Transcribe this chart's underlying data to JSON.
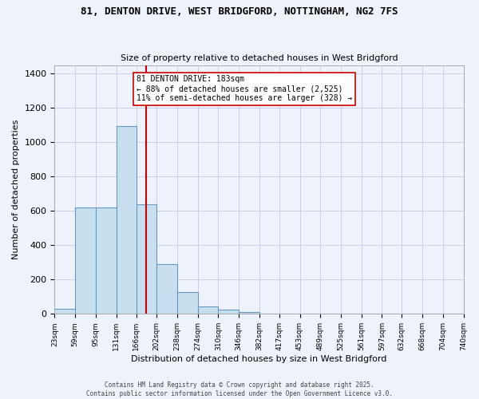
{
  "title_line1": "81, DENTON DRIVE, WEST BRIDGFORD, NOTTINGHAM, NG2 7FS",
  "title_line2": "Size of property relative to detached houses in West Bridgford",
  "xlabel": "Distribution of detached houses by size in West Bridgford",
  "ylabel": "Number of detached properties",
  "bar_color": "#c8dff0",
  "bar_edge_color": "#6699bb",
  "background_color": "#eef2fb",
  "grid_color": "#c8cfe8",
  "vline_color": "#cc0000",
  "vline_x": 183,
  "annotation_text": "81 DENTON DRIVE: 183sqm\n← 88% of detached houses are smaller (2,525)\n11% of semi-detached houses are larger (328) →",
  "annotation_box_color": "#ffffff",
  "annotation_box_edge": "#cc0000",
  "footer_line1": "Contains HM Land Registry data © Crown copyright and database right 2025.",
  "footer_line2": "Contains public sector information licensed under the Open Government Licence v3.0.",
  "bin_edges": [
    23,
    59,
    95,
    131,
    166,
    202,
    238,
    274,
    310,
    346,
    382,
    417,
    453,
    489,
    525,
    561,
    597,
    632,
    668,
    704,
    740
  ],
  "bar_heights": [
    30,
    620,
    620,
    1095,
    640,
    290,
    125,
    45,
    25,
    10,
    0,
    0,
    0,
    0,
    0,
    0,
    0,
    0,
    0,
    0
  ],
  "ylim": [
    0,
    1450
  ],
  "yticks": [
    0,
    200,
    400,
    600,
    800,
    1000,
    1200,
    1400
  ]
}
